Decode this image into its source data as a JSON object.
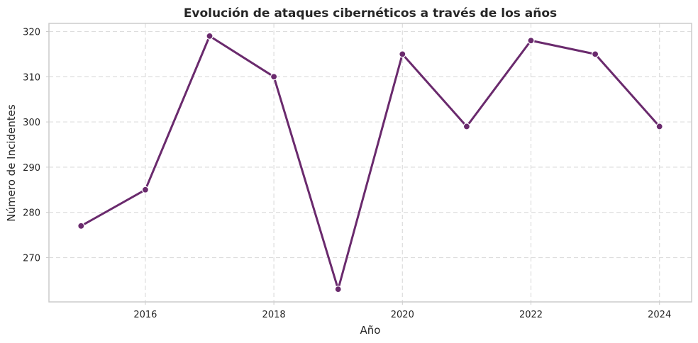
{
  "chart_data": {
    "type": "line",
    "title": "Evolución de ataques cibernéticos a través de los años",
    "xlabel": "Año",
    "ylabel": "Número de Incidentes",
    "x": [
      2015,
      2016,
      2017,
      2018,
      2019,
      2020,
      2021,
      2022,
      2023,
      2024
    ],
    "series": [
      {
        "values": [
          277,
          285,
          319,
          310,
          263,
          315,
          299,
          318,
          315,
          299
        ]
      }
    ],
    "xlim": [
      2014.5,
      2024.5
    ],
    "ylim": [
      260.2,
      321.8
    ],
    "xticks": [
      "2016",
      "2018",
      "2020",
      "2022",
      "2024"
    ],
    "yticks": [
      "270",
      "280",
      "290",
      "300",
      "310",
      "320"
    ],
    "grid": true,
    "line_color": "#6a2a6d",
    "grid_color": "#dddddd",
    "spine_color": "#cccccc"
  }
}
